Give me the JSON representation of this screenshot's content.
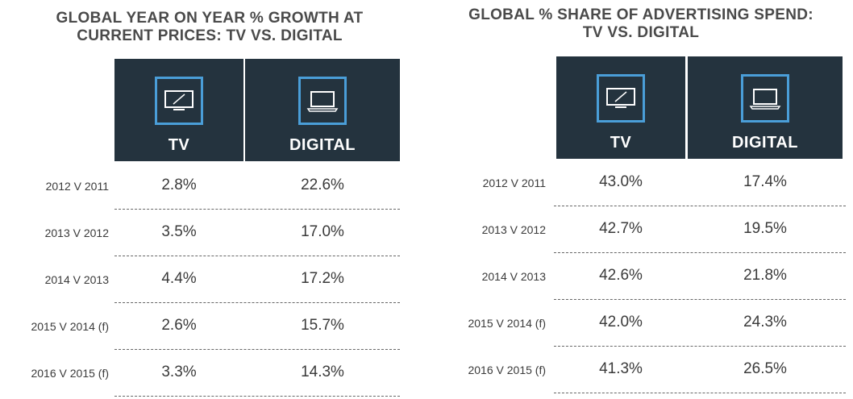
{
  "chart_data": [
    {
      "type": "table",
      "title": "GLOBAL YEAR ON YEAR % GROWTH AT CURRENT PRICES: TV VS. DIGITAL",
      "title_lines": [
        "GLOBAL YEAR ON YEAR % GROWTH AT",
        "CURRENT PRICES: TV VS. DIGITAL"
      ],
      "columns": [
        {
          "label": "TV",
          "icon": "tv-icon"
        },
        {
          "label": "DIGITAL",
          "icon": "laptop-icon"
        }
      ],
      "rows": [
        {
          "label": "2012 V 2011",
          "values": [
            "2.8%",
            "22.6%"
          ]
        },
        {
          "label": "2013 V 2012",
          "values": [
            "3.5%",
            "17.0%"
          ]
        },
        {
          "label": "2014 V 2013",
          "values": [
            "4.4%",
            "17.2%"
          ]
        },
        {
          "label": "2015 V 2014 (f)",
          "values": [
            "2.6%",
            "15.7%"
          ]
        },
        {
          "label": "2016 V 2015 (f)",
          "values": [
            "3.3%",
            "14.3%"
          ]
        }
      ]
    },
    {
      "type": "table",
      "title": "GLOBAL % SHARE OF ADVERTISING SPEND: TV VS. DIGITAL",
      "title_lines": [
        "GLOBAL % SHARE OF ADVERTISING SPEND:",
        "TV VS. DIGITAL"
      ],
      "columns": [
        {
          "label": "TV",
          "icon": "tv-icon"
        },
        {
          "label": "DIGITAL",
          "icon": "laptop-icon"
        }
      ],
      "rows": [
        {
          "label": "2012 V 2011",
          "values": [
            "43.0%",
            "17.4%"
          ]
        },
        {
          "label": "2013 V 2012",
          "values": [
            "42.7%",
            "19.5%"
          ]
        },
        {
          "label": "2014 V 2013",
          "values": [
            "42.6%",
            "21.8%"
          ]
        },
        {
          "label": "2015 V 2014 (f)",
          "values": [
            "42.0%",
            "24.3%"
          ]
        },
        {
          "label": "2016 V 2015 (f)",
          "values": [
            "41.3%",
            "26.5%"
          ]
        }
      ]
    }
  ],
  "colors": {
    "header_bg": "#24333e",
    "icon_border": "#4a9ed8",
    "text": "#3a3a3a"
  }
}
